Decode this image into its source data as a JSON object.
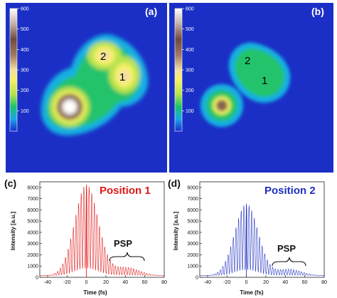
{
  "chart_data": [
    {
      "panel": "(a)",
      "type": "heatmap",
      "colorbar": {
        "ticks": [
          100,
          200,
          300,
          400,
          500,
          600
        ],
        "range": [
          0,
          600
        ]
      },
      "spots": [
        {
          "label": "2",
          "color": "#1f4fb8",
          "peak": 330
        },
        {
          "label": "1",
          "color": "#e01818",
          "peak": 320
        },
        {
          "label": "",
          "peak": 620
        }
      ]
    },
    {
      "panel": "(b)",
      "type": "heatmap",
      "colorbar": {
        "ticks": [
          100,
          200,
          300,
          400,
          500,
          600
        ],
        "range": [
          0,
          600
        ]
      },
      "spots": [
        {
          "label": "2",
          "color": "#1f4fb8",
          "peak": 180
        },
        {
          "label": "1",
          "color": "#e01818",
          "peak": 190
        },
        {
          "label": "",
          "peak": 360
        }
      ]
    },
    {
      "panel": "(c)",
      "type": "line",
      "title": "Position 1",
      "color": "#e01818",
      "xlabel": "Time (fs)",
      "ylabel": "Intensity [a.u.]",
      "xlim": [
        -48,
        80
      ],
      "ylim": [
        0,
        8500
      ],
      "xticks": [
        -40,
        -20,
        0,
        20,
        40,
        60,
        80
      ],
      "yticks": [
        0,
        1000,
        2000,
        3000,
        4000,
        5000,
        6000,
        7000,
        8000
      ],
      "peak": 8100,
      "peak_time": 0,
      "fringe_period_fs": 2.7,
      "annotation": {
        "text": "PSP",
        "x_range": [
          22,
          60
        ]
      }
    },
    {
      "panel": "(d)",
      "type": "line",
      "title": "Position 2",
      "color": "#1f2fc0",
      "xlabel": "Time (fs)",
      "ylabel": "Intensity [a.u.]",
      "xlim": [
        -48,
        80
      ],
      "ylim": [
        0,
        8500
      ],
      "xticks": [
        -40,
        -20,
        0,
        20,
        40,
        60,
        80
      ],
      "yticks": [
        0,
        1000,
        2000,
        3000,
        4000,
        5000,
        6000,
        7000,
        8000
      ],
      "peak": 6400,
      "peak_time": 0,
      "fringe_period_fs": 2.7,
      "annotation": {
        "text": "PSP",
        "x_range": [
          26,
          62
        ]
      }
    }
  ]
}
